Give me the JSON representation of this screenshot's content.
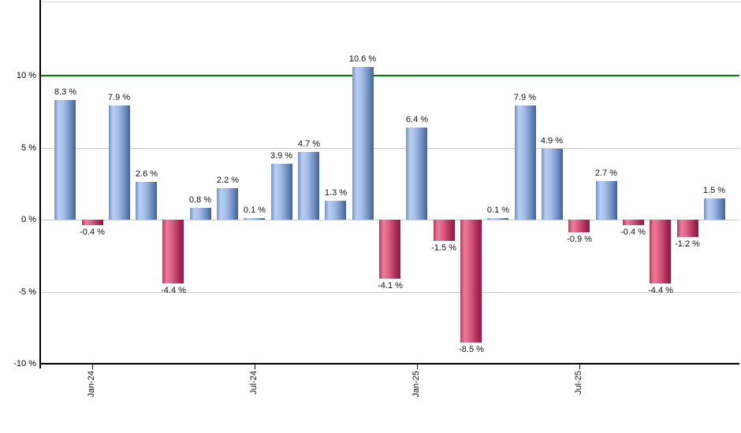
{
  "chart_data": {
    "type": "bar",
    "title": "",
    "xlabel": "",
    "ylabel": "",
    "values": [
      8.3,
      -0.4,
      7.9,
      2.6,
      -4.4,
      0.8,
      2.2,
      0.1,
      3.9,
      4.7,
      1.3,
      10.6,
      -4.1,
      6.4,
      -1.5,
      -8.5,
      0.1,
      7.9,
      4.9,
      -0.9,
      2.7,
      -0.4,
      -4.4,
      -1.2,
      1.5
    ],
    "bar_count": 25,
    "value_suffix": " %",
    "xticks": [
      {
        "index": 1,
        "label": "Jan-24"
      },
      {
        "index": 7,
        "label": "Jul-24"
      },
      {
        "index": 13,
        "label": "Jan-25"
      },
      {
        "index": 19,
        "label": "Jul-25"
      }
    ],
    "yticks": [
      {
        "value": 10,
        "label": "10 %"
      },
      {
        "value": 5,
        "label": "5 %"
      },
      {
        "value": 0,
        "label": "0 %"
      },
      {
        "value": -5,
        "label": "-5 %"
      },
      {
        "value": -10,
        "label": "-10 %"
      }
    ],
    "ylim": [
      -10,
      15.1
    ],
    "grid": {
      "y_values": [
        5,
        0,
        -5
      ],
      "color": "#c9c9c9",
      "top_border_color": "#d4d4d4"
    },
    "threshold_line": {
      "value": 10,
      "color": "#007a00"
    },
    "legend": null,
    "colors": {
      "positive_bar": "#88a8dc",
      "negative_bar": "#cc4870",
      "axis": "#000000",
      "label_text": "#111111"
    }
  }
}
